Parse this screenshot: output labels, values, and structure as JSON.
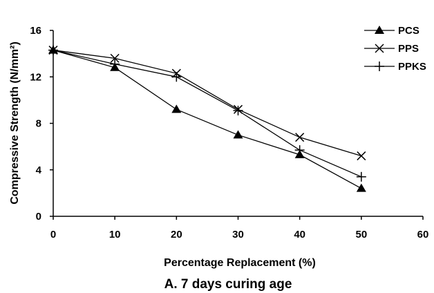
{
  "chart_data": {
    "type": "line",
    "x": [
      0,
      10,
      20,
      30,
      40,
      50
    ],
    "xlim": [
      0,
      60
    ],
    "ylim": [
      0,
      16
    ],
    "xticks": [
      0,
      10,
      20,
      30,
      40,
      50,
      60
    ],
    "yticks": [
      0,
      4,
      8,
      12,
      16
    ],
    "xlabel": "Percentage Replacement (%)",
    "ylabel": "Compressive Strength  (N/mm²)",
    "caption": "A. 7 days curing age",
    "legend_position": "top-right",
    "grid": false,
    "series": [
      {
        "name": "PCS",
        "marker": "triangle",
        "values": [
          14.3,
          12.8,
          9.2,
          7.0,
          5.3,
          2.4
        ]
      },
      {
        "name": "PPS",
        "marker": "x",
        "values": [
          14.3,
          13.6,
          12.3,
          9.2,
          6.8,
          5.2
        ]
      },
      {
        "name": "PPKS",
        "marker": "plus",
        "values": [
          14.3,
          13.1,
          12.0,
          9.1,
          5.7,
          3.4
        ]
      }
    ]
  }
}
